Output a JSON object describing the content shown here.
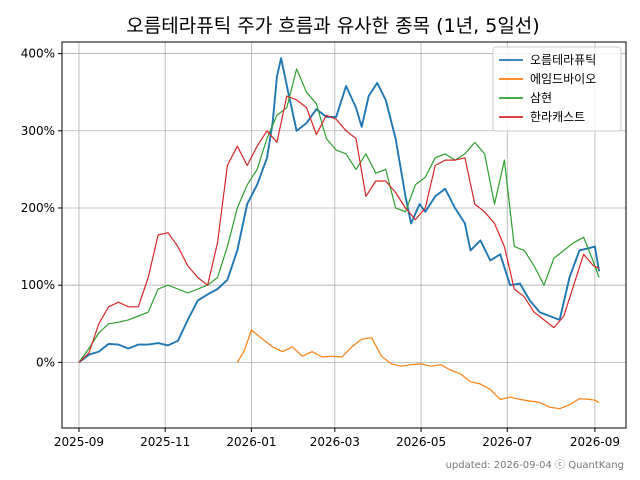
{
  "chart_data": {
    "type": "line",
    "title": "오름테라퓨틱 주가 흐름과 유사한 종목 (1년, 5일선)",
    "xlabel": "",
    "ylabel": "",
    "x_tick_labels": [
      "2025-09",
      "2025-11",
      "2026-01",
      "2026-03",
      "2026-05",
      "2026-07",
      "2026-09"
    ],
    "x_range": [
      "2025-08-20",
      "2026-09-23"
    ],
    "y_tick_values": [
      0,
      100,
      200,
      300,
      400
    ],
    "y_tick_labels": [
      "0%",
      "100%",
      "200%",
      "300%",
      "400%"
    ],
    "y_range": [
      -85,
      415
    ],
    "grid": true,
    "legend_position": "top-right",
    "footnote": "updated: 2026-09-04 ⓒ QuantKang",
    "series": [
      {
        "name": "오름테라퓨틱",
        "color": "#1f77b4",
        "points": [
          [
            "2025-09-01",
            0
          ],
          [
            "2025-09-08",
            10
          ],
          [
            "2025-09-15",
            14
          ],
          [
            "2025-09-22",
            24
          ],
          [
            "2025-09-29",
            23
          ],
          [
            "2025-10-06",
            18
          ],
          [
            "2025-10-13",
            23
          ],
          [
            "2025-10-20",
            23
          ],
          [
            "2025-10-27",
            25
          ],
          [
            "2025-11-03",
            22
          ],
          [
            "2025-11-10",
            28
          ],
          [
            "2025-11-17",
            55
          ],
          [
            "2025-11-24",
            80
          ],
          [
            "2025-12-01",
            88
          ],
          [
            "2025-12-08",
            95
          ],
          [
            "2025-12-15",
            107
          ],
          [
            "2025-12-22",
            145
          ],
          [
            "2025-12-29",
            205
          ],
          [
            "2026-01-05",
            230
          ],
          [
            "2026-01-12",
            265
          ],
          [
            "2026-01-16",
            310
          ],
          [
            "2026-01-19",
            370
          ],
          [
            "2026-01-22",
            394
          ],
          [
            "2026-01-27",
            350
          ],
          [
            "2026-02-02",
            300
          ],
          [
            "2026-02-09",
            310
          ],
          [
            "2026-02-16",
            328
          ],
          [
            "2026-02-23",
            318
          ],
          [
            "2026-03-02",
            318
          ],
          [
            "2026-03-09",
            358
          ],
          [
            "2026-03-16",
            330
          ],
          [
            "2026-03-20",
            305
          ],
          [
            "2026-03-25",
            345
          ],
          [
            "2026-03-31",
            362
          ],
          [
            "2026-04-06",
            340
          ],
          [
            "2026-04-13",
            290
          ],
          [
            "2026-04-20",
            215
          ],
          [
            "2026-04-24",
            180
          ],
          [
            "2026-04-30",
            205
          ],
          [
            "2026-05-04",
            195
          ],
          [
            "2026-05-11",
            215
          ],
          [
            "2026-05-18",
            225
          ],
          [
            "2026-05-25",
            200
          ],
          [
            "2026-06-01",
            180
          ],
          [
            "2026-06-05",
            145
          ],
          [
            "2026-06-12",
            158
          ],
          [
            "2026-06-19",
            132
          ],
          [
            "2026-06-26",
            140
          ],
          [
            "2026-07-03",
            100
          ],
          [
            "2026-07-10",
            102
          ],
          [
            "2026-07-17",
            80
          ],
          [
            "2026-07-24",
            65
          ],
          [
            "2026-07-31",
            60
          ],
          [
            "2026-08-07",
            55
          ],
          [
            "2026-08-14",
            110
          ],
          [
            "2026-08-21",
            145
          ],
          [
            "2026-08-28",
            148
          ],
          [
            "2026-09-01",
            150
          ],
          [
            "2026-09-04",
            118
          ]
        ]
      },
      {
        "name": "에임드바이오",
        "color": "#ff7f0e",
        "points": [
          [
            "2025-12-22",
            0
          ],
          [
            "2025-12-27",
            15
          ],
          [
            "2026-01-01",
            42
          ],
          [
            "2026-01-09",
            30
          ],
          [
            "2026-01-16",
            20
          ],
          [
            "2026-01-23",
            14
          ],
          [
            "2026-01-30",
            20
          ],
          [
            "2026-02-06",
            8
          ],
          [
            "2026-02-13",
            14
          ],
          [
            "2026-02-20",
            7
          ],
          [
            "2026-02-27",
            8
          ],
          [
            "2026-03-06",
            7
          ],
          [
            "2026-03-13",
            20
          ],
          [
            "2026-03-20",
            30
          ],
          [
            "2026-03-27",
            32
          ],
          [
            "2026-04-03",
            8
          ],
          [
            "2026-04-10",
            -2
          ],
          [
            "2026-04-17",
            -5
          ],
          [
            "2026-04-24",
            -3
          ],
          [
            "2026-05-01",
            -2
          ],
          [
            "2026-05-08",
            -5
          ],
          [
            "2026-05-15",
            -3
          ],
          [
            "2026-05-22",
            -10
          ],
          [
            "2026-05-29",
            -15
          ],
          [
            "2026-06-05",
            -25
          ],
          [
            "2026-06-12",
            -28
          ],
          [
            "2026-06-19",
            -35
          ],
          [
            "2026-06-26",
            -48
          ],
          [
            "2026-07-03",
            -45
          ],
          [
            "2026-07-10",
            -48
          ],
          [
            "2026-07-17",
            -50
          ],
          [
            "2026-07-24",
            -52
          ],
          [
            "2026-07-31",
            -58
          ],
          [
            "2026-08-07",
            -60
          ],
          [
            "2026-08-14",
            -55
          ],
          [
            "2026-08-21",
            -47
          ],
          [
            "2026-08-28",
            -48
          ],
          [
            "2026-09-01",
            -49
          ],
          [
            "2026-09-04",
            -52
          ]
        ]
      },
      {
        "name": "삼현",
        "color": "#2ca02c",
        "points": [
          [
            "2025-09-01",
            0
          ],
          [
            "2025-09-08",
            18
          ],
          [
            "2025-09-15",
            38
          ],
          [
            "2025-09-22",
            50
          ],
          [
            "2025-09-29",
            52
          ],
          [
            "2025-10-06",
            55
          ],
          [
            "2025-10-13",
            60
          ],
          [
            "2025-10-20",
            65
          ],
          [
            "2025-10-27",
            95
          ],
          [
            "2025-11-03",
            100
          ],
          [
            "2025-11-10",
            95
          ],
          [
            "2025-11-17",
            90
          ],
          [
            "2025-11-24",
            95
          ],
          [
            "2025-12-01",
            100
          ],
          [
            "2025-12-08",
            110
          ],
          [
            "2025-12-15",
            150
          ],
          [
            "2025-12-22",
            200
          ],
          [
            "2025-12-29",
            230
          ],
          [
            "2026-01-05",
            250
          ],
          [
            "2026-01-12",
            290
          ],
          [
            "2026-01-19",
            320
          ],
          [
            "2026-01-26",
            330
          ],
          [
            "2026-02-02",
            380
          ],
          [
            "2026-02-09",
            350
          ],
          [
            "2026-02-16",
            335
          ],
          [
            "2026-02-23",
            290
          ],
          [
            "2026-03-02",
            275
          ],
          [
            "2026-03-09",
            270
          ],
          [
            "2026-03-16",
            250
          ],
          [
            "2026-03-23",
            270
          ],
          [
            "2026-03-30",
            245
          ],
          [
            "2026-04-06",
            250
          ],
          [
            "2026-04-13",
            200
          ],
          [
            "2026-04-20",
            195
          ],
          [
            "2026-04-27",
            230
          ],
          [
            "2026-05-04",
            240
          ],
          [
            "2026-05-11",
            265
          ],
          [
            "2026-05-18",
            270
          ],
          [
            "2026-05-25",
            262
          ],
          [
            "2026-06-01",
            270
          ],
          [
            "2026-06-08",
            285
          ],
          [
            "2026-06-15",
            270
          ],
          [
            "2026-06-22",
            205
          ],
          [
            "2026-06-29",
            262
          ],
          [
            "2026-07-06",
            150
          ],
          [
            "2026-07-13",
            145
          ],
          [
            "2026-07-20",
            125
          ],
          [
            "2026-07-27",
            100
          ],
          [
            "2026-08-03",
            135
          ],
          [
            "2026-08-10",
            145
          ],
          [
            "2026-08-17",
            155
          ],
          [
            "2026-08-24",
            162
          ],
          [
            "2026-08-31",
            130
          ],
          [
            "2026-09-04",
            110
          ]
        ]
      },
      {
        "name": "한라캐스트",
        "color": "#d62728",
        "points": [
          [
            "2025-09-01",
            0
          ],
          [
            "2025-09-08",
            12
          ],
          [
            "2025-09-15",
            50
          ],
          [
            "2025-09-22",
            72
          ],
          [
            "2025-09-29",
            78
          ],
          [
            "2025-10-06",
            72
          ],
          [
            "2025-10-13",
            72
          ],
          [
            "2025-10-20",
            110
          ],
          [
            "2025-10-27",
            165
          ],
          [
            "2025-11-03",
            168
          ],
          [
            "2025-11-10",
            150
          ],
          [
            "2025-11-17",
            125
          ],
          [
            "2025-11-24",
            110
          ],
          [
            "2025-12-01",
            100
          ],
          [
            "2025-12-08",
            155
          ],
          [
            "2025-12-15",
            255
          ],
          [
            "2025-12-22",
            280
          ],
          [
            "2025-12-29",
            255
          ],
          [
            "2026-01-05",
            280
          ],
          [
            "2026-01-12",
            300
          ],
          [
            "2026-01-19",
            285
          ],
          [
            "2026-01-26",
            345
          ],
          [
            "2026-02-02",
            340
          ],
          [
            "2026-02-09",
            330
          ],
          [
            "2026-02-16",
            295
          ],
          [
            "2026-02-23",
            320
          ],
          [
            "2026-03-02",
            315
          ],
          [
            "2026-03-09",
            300
          ],
          [
            "2026-03-16",
            290
          ],
          [
            "2026-03-23",
            215
          ],
          [
            "2026-03-30",
            235
          ],
          [
            "2026-04-06",
            235
          ],
          [
            "2026-04-13",
            220
          ],
          [
            "2026-04-20",
            200
          ],
          [
            "2026-04-27",
            185
          ],
          [
            "2026-05-04",
            200
          ],
          [
            "2026-05-11",
            255
          ],
          [
            "2026-05-18",
            262
          ],
          [
            "2026-05-25",
            262
          ],
          [
            "2026-06-01",
            265
          ],
          [
            "2026-06-08",
            205
          ],
          [
            "2026-06-15",
            195
          ],
          [
            "2026-06-22",
            180
          ],
          [
            "2026-06-29",
            150
          ],
          [
            "2026-07-06",
            95
          ],
          [
            "2026-07-13",
            85
          ],
          [
            "2026-07-20",
            65
          ],
          [
            "2026-07-27",
            55
          ],
          [
            "2026-08-03",
            45
          ],
          [
            "2026-08-10",
            60
          ],
          [
            "2026-08-17",
            100
          ],
          [
            "2026-08-24",
            140
          ],
          [
            "2026-08-31",
            125
          ],
          [
            "2026-09-04",
            122
          ]
        ]
      }
    ]
  }
}
